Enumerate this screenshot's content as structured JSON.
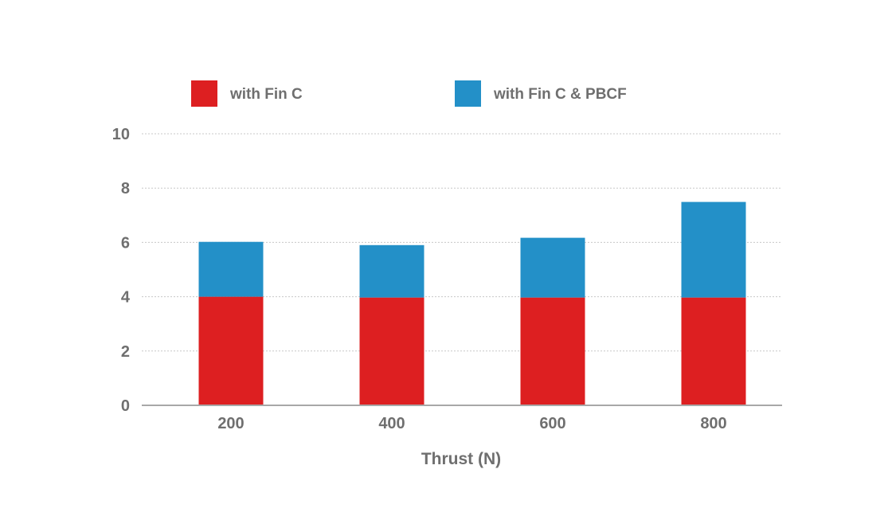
{
  "chart_data": {
    "type": "bar",
    "stacked": true,
    "categories": [
      "200",
      "400",
      "600",
      "800"
    ],
    "series": [
      {
        "name": "with Fin C",
        "color": "#dd1f21",
        "values": [
          4.0,
          3.97,
          3.97,
          3.97
        ]
      },
      {
        "name": "with Fin C & PBCF",
        "color": "#2390c8",
        "values": [
          2.02,
          1.93,
          2.2,
          3.52
        ]
      }
    ],
    "title": "",
    "xlabel": "Thrust (N)",
    "ylabel": "",
    "ylim": [
      0,
      10
    ],
    "yticks": [
      "0",
      "2",
      "4",
      "6",
      "8",
      "10"
    ],
    "grid": "horizontal-dotted",
    "legend_position": "top"
  }
}
